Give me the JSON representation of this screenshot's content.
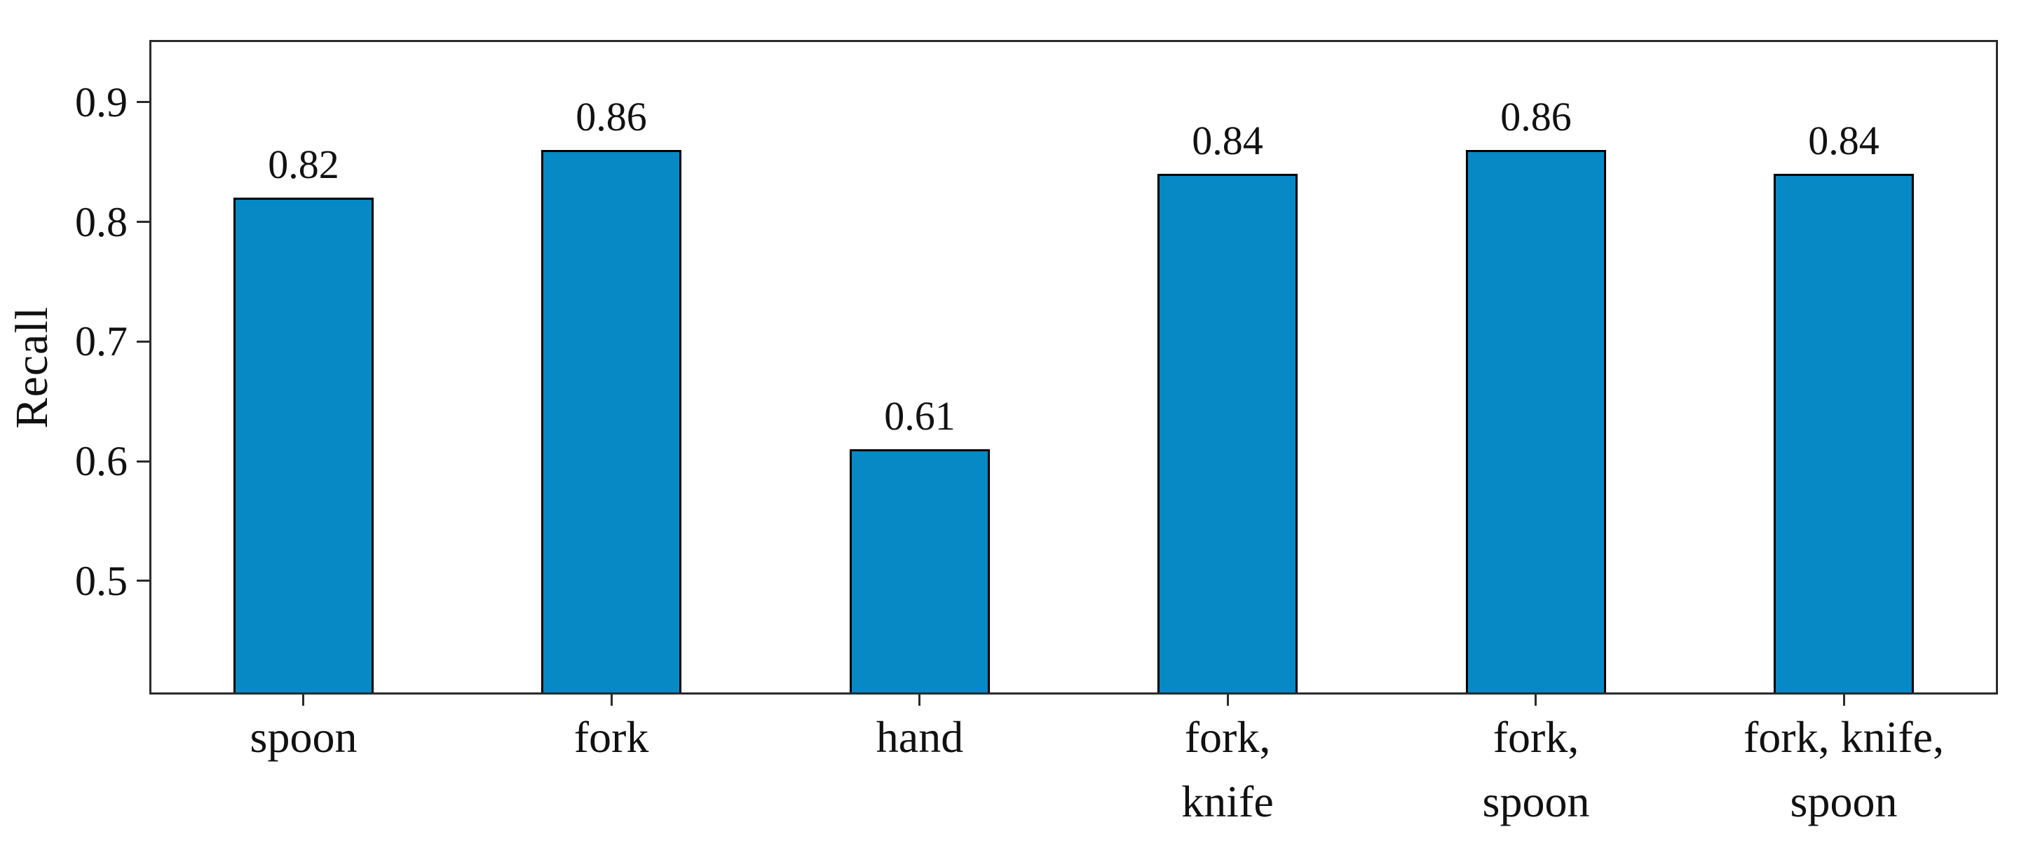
{
  "chart_data": {
    "type": "bar",
    "title": "",
    "xlabel": "",
    "ylabel": "Recall",
    "categories": [
      "spoon",
      "fork",
      "hand",
      "fork,\nknife",
      "fork,\nspoon",
      "fork, knife,\nspoon"
    ],
    "values": [
      0.82,
      0.86,
      0.61,
      0.84,
      0.86,
      0.84
    ],
    "bar_value_labels": [
      "0.82",
      "0.86",
      "0.61",
      "0.84",
      "0.86",
      "0.84"
    ],
    "yticks": [
      0.9,
      0.8,
      0.7,
      0.6,
      0.5
    ],
    "ytick_labels": [
      "0.9",
      "0.8",
      "0.7",
      "0.6",
      "0.5"
    ],
    "ylim": [
      0.405,
      0.952
    ],
    "grid": false,
    "legend": null,
    "colors": {
      "bar_fill": "#0689c5",
      "bar_edge": "#000000",
      "spine": "#2b2b2b",
      "text": "#111111"
    }
  }
}
